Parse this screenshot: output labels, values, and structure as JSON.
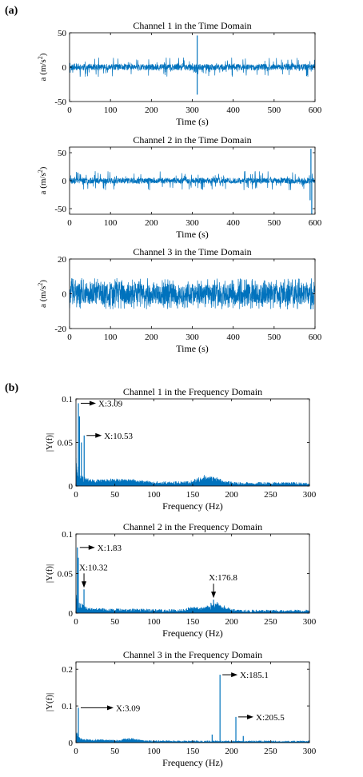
{
  "panel_labels": {
    "a": "(a)",
    "b": "(b)"
  },
  "colors": {
    "signal": "#0072BD",
    "axis": "#000000",
    "annotation": "#000000"
  },
  "chart_data": [
    {
      "type": "line",
      "title": "Channel 1 in the Time Domain",
      "xlabel": "Time (s)",
      "ylabel": "a (m/s",
      "ylabel_sup": "2",
      "ylabel_end": ")",
      "xlim": [
        0,
        600
      ],
      "ylim": [
        -50,
        50
      ],
      "xticks": [
        0,
        100,
        200,
        300,
        400,
        500,
        600
      ],
      "yticks": [
        -50,
        0,
        50
      ],
      "signal": {
        "kind": "noise",
        "seed": 11,
        "n": 1400,
        "base": 4.5,
        "burst": 14,
        "burst_prob": 0.12
      },
      "spikes": [
        {
          "x": 312,
          "y": 46
        },
        {
          "x": 312,
          "y": -40
        }
      ],
      "annotations": []
    },
    {
      "type": "line",
      "title": "Channel 2 in the Time Domain",
      "xlabel": "Time (s)",
      "ylabel": "a (m/s",
      "ylabel_sup": "2",
      "ylabel_end": ")",
      "xlim": [
        0,
        600
      ],
      "ylim": [
        -60,
        60
      ],
      "xticks": [
        0,
        100,
        200,
        300,
        400,
        500,
        600
      ],
      "yticks": [
        -50,
        0,
        50
      ],
      "signal": {
        "kind": "noise",
        "seed": 23,
        "n": 1400,
        "base": 5,
        "burst": 17,
        "burst_prob": 0.12
      },
      "spikes": [
        {
          "x": 590,
          "y": 57
        },
        {
          "x": 592,
          "y": -60
        },
        {
          "x": 588,
          "y": -35
        }
      ],
      "annotations": []
    },
    {
      "type": "line",
      "title": "Channel 3 in the Time Domain",
      "xlabel": "Time (s)",
      "ylabel": "a (m/s",
      "ylabel_sup": "2",
      "ylabel_end": ")",
      "xlim": [
        0,
        600
      ],
      "ylim": [
        -20,
        20
      ],
      "xticks": [
        0,
        100,
        200,
        300,
        400,
        500,
        600
      ],
      "yticks": [
        -20,
        0,
        20
      ],
      "signal": {
        "kind": "noise",
        "seed": 37,
        "n": 1600,
        "base": 6,
        "burst": 9,
        "burst_prob": 0.3
      },
      "spikes": [],
      "annotations": []
    },
    {
      "type": "line",
      "title": "Channel 1 in the Frequency Domain",
      "xlabel": "Frequency (Hz)",
      "ylabel": "|Y(f)|",
      "xlim": [
        0,
        300
      ],
      "ylim": [
        0,
        0.1
      ],
      "xticks": [
        0,
        50,
        100,
        150,
        200,
        250,
        300
      ],
      "yticks": [
        0,
        0.05,
        0.1
      ],
      "ytick_labels": [
        "0",
        "0.05",
        "0.1"
      ],
      "signal": {
        "kind": "spectrum",
        "seed": 51,
        "n": 700,
        "base": 0.004,
        "noise": 0.004,
        "humps": [
          {
            "c": 170,
            "w": 18,
            "a": 0.006
          },
          {
            "c": 60,
            "w": 25,
            "a": 0.002
          }
        ]
      },
      "spikes": [
        {
          "x": 3.09,
          "y": 0.095
        },
        {
          "x": 4.5,
          "y": 0.08
        },
        {
          "x": 10.53,
          "y": 0.058
        },
        {
          "x": 7,
          "y": 0.05
        }
      ],
      "annotations": [
        {
          "text": "X:3.09",
          "x": 3.09,
          "y": 0.095,
          "dir": "right"
        },
        {
          "text": "X:10.53",
          "x": 10.53,
          "y": 0.058,
          "dir": "right"
        }
      ]
    },
    {
      "type": "line",
      "title": "Channel 2 in the Frequency Domain",
      "xlabel": "Frequency (Hz)",
      "ylabel": "|Y(f)|",
      "xlim": [
        0,
        300
      ],
      "ylim": [
        0,
        0.1
      ],
      "xticks": [
        0,
        50,
        100,
        150,
        200,
        250,
        300
      ],
      "yticks": [
        0,
        0.05,
        0.1
      ],
      "ytick_labels": [
        "0",
        "0.05",
        "0.1"
      ],
      "signal": {
        "kind": "spectrum",
        "seed": 67,
        "n": 700,
        "base": 0.003,
        "noise": 0.004,
        "humps": [
          {
            "c": 180,
            "w": 15,
            "a": 0.007
          },
          {
            "c": 150,
            "w": 10,
            "a": 0.003
          }
        ]
      },
      "spikes": [
        {
          "x": 1.83,
          "y": 0.083
        },
        {
          "x": 3,
          "y": 0.07
        },
        {
          "x": 10.32,
          "y": 0.03
        },
        {
          "x": 176.8,
          "y": 0.017
        }
      ],
      "annotations": [
        {
          "text": "X:1.83",
          "x": 1.83,
          "y": 0.083,
          "dir": "right"
        },
        {
          "text": "X:10.32",
          "x": 10.32,
          "y": 0.03,
          "dir": "up"
        },
        {
          "text": "X:176.8",
          "x": 176.8,
          "y": 0.017,
          "dir": "up"
        }
      ]
    },
    {
      "type": "line",
      "title": "Channel 3 in the Frequency Domain",
      "xlabel": "Frequency (Hz)",
      "ylabel": "|Y(f)|",
      "xlim": [
        0,
        300
      ],
      "ylim": [
        0,
        0.22
      ],
      "xticks": [
        0,
        50,
        100,
        150,
        200,
        250,
        300
      ],
      "yticks": [
        0,
        0.1,
        0.2
      ],
      "ytick_labels": [
        "0",
        "0.1",
        "0.2"
      ],
      "signal": {
        "kind": "spectrum",
        "seed": 83,
        "n": 700,
        "base": 0.003,
        "noise": 0.005,
        "humps": [
          {
            "c": 70,
            "w": 10,
            "a": 0.006
          },
          {
            "c": 30,
            "w": 15,
            "a": 0.002
          }
        ]
      },
      "spikes": [
        {
          "x": 3.09,
          "y": 0.095
        },
        {
          "x": 185.1,
          "y": 0.185
        },
        {
          "x": 205.5,
          "y": 0.07
        },
        {
          "x": 175,
          "y": 0.022
        },
        {
          "x": 215,
          "y": 0.018
        }
      ],
      "annotations": [
        {
          "text": "X:3.09",
          "x": 3.09,
          "y": 0.095,
          "dir": "right-long"
        },
        {
          "text": "X:185.1",
          "x": 185.1,
          "y": 0.185,
          "dir": "right"
        },
        {
          "text": "X:205.5",
          "x": 205.5,
          "y": 0.07,
          "dir": "right"
        }
      ]
    }
  ]
}
